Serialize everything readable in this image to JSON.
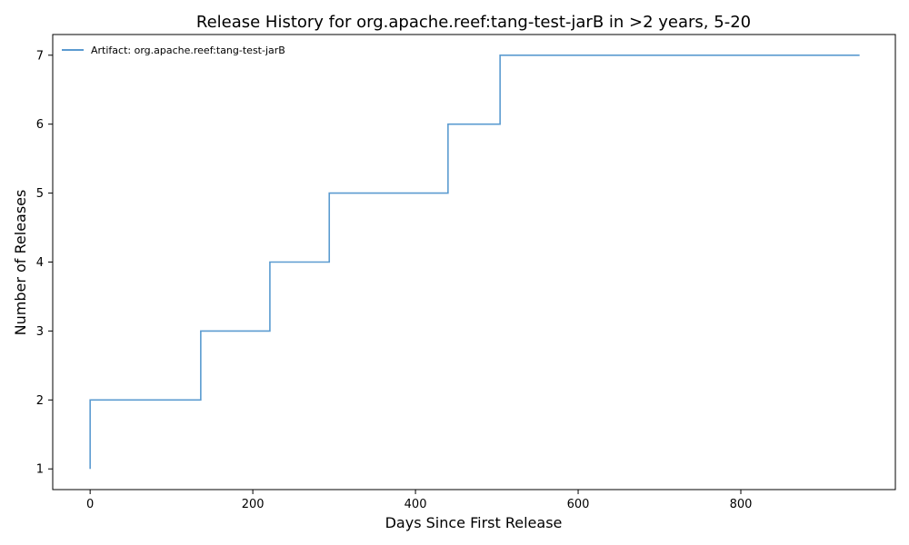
{
  "chart_data": {
    "type": "line",
    "step": "post",
    "title": "Release History for org.apache.reef:tang-test-jarB in >2 years, 5-20",
    "xlabel": "Days Since First Release",
    "ylabel": "Number of Releases",
    "xlim": [
      -46,
      990
    ],
    "ylim": [
      0.7,
      7.3
    ],
    "xticks": [
      0,
      200,
      400,
      600,
      800
    ],
    "yticks": [
      1,
      2,
      3,
      4,
      5,
      6,
      7
    ],
    "grid": false,
    "legend_position": "top-left",
    "series": [
      {
        "name": "Artifact: org.apache.reef:tang-test-jarB",
        "color": "#5b9bd0",
        "x": [
          0,
          0,
          136,
          221,
          294,
          440,
          504,
          946
        ],
        "y": [
          1,
          2,
          3,
          4,
          5,
          6,
          7,
          7
        ]
      }
    ]
  }
}
